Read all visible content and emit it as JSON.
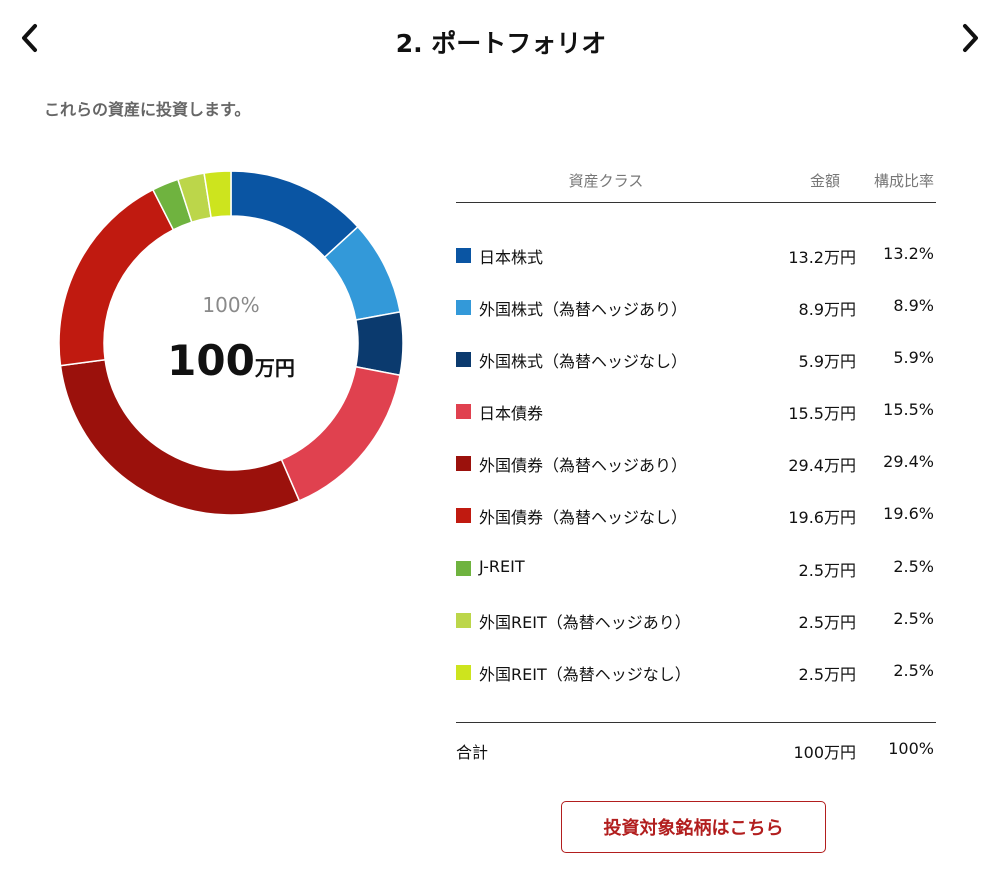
{
  "header": {
    "title": "2. ポートフォリオ",
    "prev_icon": "chevron-left-icon",
    "next_icon": "chevron-right-icon"
  },
  "intro_text": "これらの資産に投資します。",
  "donut": {
    "center_percent": "100%",
    "center_amount": "100",
    "center_unit": "万円"
  },
  "table": {
    "headers": {
      "asset_class": "資産クラス",
      "amount": "金額",
      "ratio": "構成比率"
    },
    "rows": [
      {
        "label": "日本株式",
        "amount": "13.2万円",
        "ratio": "13.2%",
        "value": 13.2,
        "color": "#0a55a3"
      },
      {
        "label": "外国株式（為替ヘッジあり）",
        "amount": "8.9万円",
        "ratio": "8.9%",
        "value": 8.9,
        "color": "#3399d9"
      },
      {
        "label": "外国株式（為替ヘッジなし）",
        "amount": "5.9万円",
        "ratio": "5.9%",
        "value": 5.9,
        "color": "#0b3a6e"
      },
      {
        "label": "日本債券",
        "amount": "15.5万円",
        "ratio": "15.5%",
        "value": 15.5,
        "color": "#e0414f"
      },
      {
        "label": "外国債券（為替ヘッジあり）",
        "amount": "29.4万円",
        "ratio": "29.4%",
        "value": 29.4,
        "color": "#9b110c"
      },
      {
        "label": "外国債券（為替ヘッジなし）",
        "amount": "19.6万円",
        "ratio": "19.6%",
        "value": 19.6,
        "color": "#c01a10"
      },
      {
        "label": "J-REIT",
        "amount": "2.5万円",
        "ratio": "2.5%",
        "value": 2.5,
        "color": "#6fb33f"
      },
      {
        "label": "外国REIT（為替ヘッジあり）",
        "amount": "2.5万円",
        "ratio": "2.5%",
        "value": 2.5,
        "color": "#bcd64a"
      },
      {
        "label": "外国REIT（為替ヘッジなし）",
        "amount": "2.5万円",
        "ratio": "2.5%",
        "value": 2.5,
        "color": "#cde41e"
      }
    ],
    "total": {
      "label": "合計",
      "amount": "100万円",
      "ratio": "100%"
    }
  },
  "cta_label": "投資対象銘柄はこちら"
}
